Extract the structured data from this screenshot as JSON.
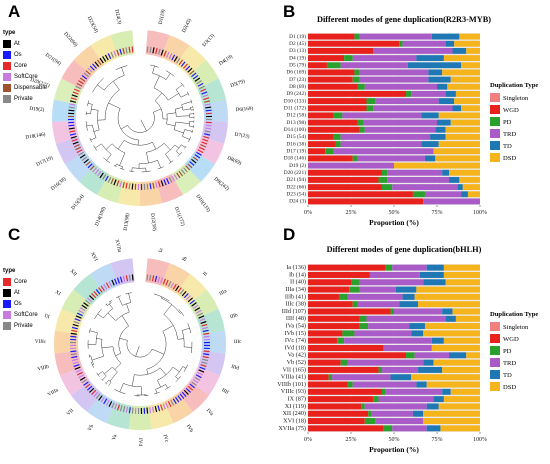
{
  "panels": {
    "A": {
      "letter": "A",
      "legend_title": "type",
      "legend": [
        {
          "label": "At",
          "color": "#000000"
        },
        {
          "label": "Os",
          "color": "#1a1aff"
        },
        {
          "label": "Core",
          "color": "#e32b2b"
        },
        {
          "label": "SoftCore",
          "color": "#c77be0"
        },
        {
          "label": "Dispensable",
          "color": "#a0522d"
        },
        {
          "label": "Private",
          "color": "#888888"
        }
      ],
      "clade_labels": [
        "D1(19)",
        "D2(45)",
        "D3(13)",
        "D4(19)",
        "D5(79)",
        "D6(169)",
        "D7(23)",
        "D8(69)",
        "D9(242)",
        "D10(133)",
        "D11(172)",
        "D12(58)",
        "D13(98)",
        "D14(100)",
        "D15(54)",
        "D16(38)",
        "D17(19)",
        "D18(146)",
        "D19(2)",
        "D20(221)",
        "D21(94)",
        "D22(66)",
        "D23(54)",
        "D24(3)"
      ],
      "ring_colors": [
        "#f4a7a7",
        "#f7c58a",
        "#f3e28c",
        "#c9e79a",
        "#9fdcc6",
        "#a8cdf0",
        "#c5b3ee",
        "#efb0d8",
        "#9fd3f3",
        "#cdeaa3"
      ]
    },
    "C": {
      "letter": "C",
      "legend_title": "type",
      "legend": [
        {
          "label": "Core",
          "color": "#e32b2b"
        },
        {
          "label": "At",
          "color": "#000000"
        },
        {
          "label": "Os",
          "color": "#1a1aff"
        },
        {
          "label": "SoftCore",
          "color": "#c77be0"
        },
        {
          "label": "Private",
          "color": "#888888"
        }
      ],
      "clade_labels": [
        "Ia",
        "Ib",
        "II",
        "IIIa",
        "IIIb",
        "IIIc",
        "IIId",
        "IIIf",
        "IVa",
        "IVb",
        "IVc",
        "IVd",
        "Va",
        "Vb",
        "VII",
        "VIIIa",
        "VIIIb",
        "VIIIc",
        "IX",
        "XI",
        "XII",
        "XVI",
        "XVIIa"
      ],
      "ring_colors": [
        "#f4a7a7",
        "#f7c58a",
        "#f3e28c",
        "#c9e79a",
        "#9fdcc6",
        "#a8cdf0",
        "#c5b3ee",
        "#efb0d8"
      ]
    },
    "B": {
      "letter": "B"
    },
    "D": {
      "letter": "D"
    }
  },
  "chart_data": [
    {
      "type": "bar",
      "orientation": "horizontal-stacked-100",
      "title": "Different modes of gene duplication(R2R3-MYB)",
      "xlabel": "Proportion (%)",
      "xlim": [
        0,
        100
      ],
      "xticks": [
        "0%",
        "25%",
        "50%",
        "75%",
        "100%"
      ],
      "legend_title": "Duplication Type",
      "legend_position": "right",
      "categories": [
        "D1 (19)",
        "D2 (45)",
        "D3 (13)",
        "D4 (19)",
        "D5 (79)",
        "D6 (169)",
        "D7 (23)",
        "D8 (69)",
        "D9 (242)",
        "D10 (133)",
        "D11 (172)",
        "D12 (58)",
        "D13 (98)",
        "D14 (100)",
        "D15 (54)",
        "D16 (38)",
        "D17 (19)",
        "D18 (146)",
        "D19 (2)",
        "D20 (221)",
        "D21 (94)",
        "D22 (66)",
        "D23 (54)",
        "D24 (3)"
      ],
      "series": [
        {
          "name": "Singleton",
          "color": "#f08080",
          "values": [
            0,
            0,
            0,
            0,
            0,
            0,
            0,
            0,
            0,
            0,
            0,
            0,
            0,
            0,
            0,
            0,
            0,
            0,
            0,
            0,
            0,
            0,
            0,
            0
          ]
        },
        {
          "name": "WGD",
          "color": "#e8211d",
          "values": [
            27,
            53,
            38,
            21,
            11,
            27,
            26,
            29,
            57,
            34,
            34,
            15,
            29,
            30,
            15,
            16,
            10,
            26,
            0,
            43,
            41,
            43,
            61,
            67
          ]
        },
        {
          "name": "PD",
          "color": "#2ca02c",
          "values": [
            3,
            2,
            0,
            5,
            8,
            3,
            4,
            4,
            3,
            5,
            4,
            5,
            3,
            3,
            4,
            3,
            5,
            3,
            0,
            3,
            5,
            6,
            7,
            0
          ]
        },
        {
          "name": "TRD",
          "color": "#a95cc7",
          "values": [
            42,
            25,
            46,
            37,
            39,
            40,
            40,
            42,
            20,
            37,
            46,
            46,
            43,
            41,
            52,
            47,
            58,
            39,
            50,
            32,
            36,
            38,
            21,
            33
          ]
        },
        {
          "name": "TD",
          "color": "#1f77b4",
          "values": [
            16,
            5,
            8,
            16,
            31,
            8,
            13,
            6,
            6,
            9,
            5,
            10,
            8,
            6,
            9,
            10,
            0,
            6,
            0,
            4,
            6,
            3,
            4,
            0
          ]
        },
        {
          "name": "DSD",
          "color": "#f5b31c",
          "values": [
            12,
            15,
            8,
            21,
            11,
            22,
            17,
            19,
            14,
            15,
            11,
            24,
            17,
            20,
            20,
            24,
            27,
            26,
            50,
            18,
            12,
            10,
            7,
            0
          ]
        }
      ]
    },
    {
      "type": "bar",
      "orientation": "horizontal-stacked-100",
      "title": "Different modes of gene duplication(bHLH)",
      "xlabel": "Proportion (%)",
      "xlim": [
        0,
        100
      ],
      "xticks": [
        "0%",
        "25%",
        "50%",
        "75%",
        "100%"
      ],
      "legend_title": "Duplication Type",
      "legend_position": "right",
      "categories": [
        "Ia (136)",
        "Ib (14)",
        "II (40)",
        "IIIa (34)",
        "IIIb (41)",
        "IIIc (38)",
        "IIId (107)",
        "IIIf (48)",
        "IVa (54)",
        "IVb (15)",
        "IVc (74)",
        "IVd (18)",
        "Va (42)",
        "Vb (52)",
        "VII (165)",
        "VIIIa (41)",
        "VIIIb (101)",
        "VIIIc (93)",
        "IX (87)",
        "XI (119)",
        "XII (240)",
        "XVI (18)",
        "XVIIa (75)"
      ],
      "series": [
        {
          "name": "Singleton",
          "color": "#f08080",
          "values": [
            0,
            0,
            0,
            0,
            0,
            0,
            0,
            0,
            0,
            0,
            0,
            0,
            0,
            0,
            0,
            0,
            0,
            0,
            0,
            0,
            0,
            0,
            0
          ]
        },
        {
          "name": "WGD",
          "color": "#e8211d",
          "values": [
            45,
            36,
            25,
            24,
            18,
            26,
            48,
            30,
            30,
            20,
            17,
            44,
            57,
            19,
            41,
            12,
            23,
            43,
            38,
            31,
            35,
            33,
            44
          ]
        },
        {
          "name": "PD",
          "color": "#2ca02c",
          "values": [
            4,
            0,
            5,
            6,
            5,
            3,
            2,
            4,
            5,
            7,
            4,
            0,
            5,
            4,
            2,
            2,
            3,
            2,
            3,
            2,
            2,
            6,
            5
          ]
        },
        {
          "name": "TRD",
          "color": "#a95cc7",
          "values": [
            20,
            29,
            37,
            21,
            32,
            24,
            28,
            46,
            24,
            33,
            51,
            28,
            20,
            44,
            21,
            34,
            37,
            33,
            32,
            36,
            24,
            28,
            20
          ]
        },
        {
          "name": "TD",
          "color": "#1f77b4",
          "values": [
            10,
            14,
            13,
            12,
            7,
            11,
            6,
            6,
            9,
            7,
            7,
            0,
            10,
            6,
            14,
            12,
            6,
            5,
            6,
            7,
            6,
            0,
            8
          ]
        },
        {
          "name": "DSD",
          "color": "#f5b31c",
          "values": [
            21,
            21,
            20,
            37,
            38,
            36,
            16,
            14,
            32,
            33,
            21,
            28,
            8,
            27,
            22,
            40,
            31,
            17,
            21,
            24,
            33,
            33,
            23
          ]
        }
      ]
    }
  ]
}
